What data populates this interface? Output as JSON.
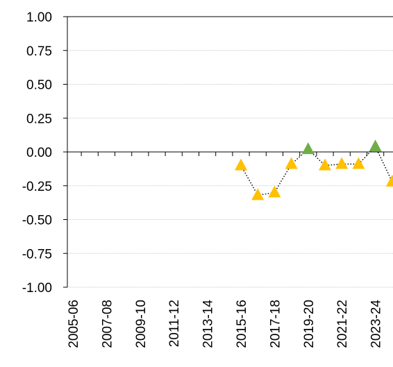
{
  "chart_data": {
    "type": "line",
    "categories": [
      "2005-06",
      null,
      "2007-08",
      null,
      "2009-10",
      null,
      "2011-12",
      null,
      "2013-14",
      null,
      "2015-16",
      null,
      "2017-18",
      null,
      "2019-20",
      null,
      "2021-22",
      null,
      "2023-24",
      null
    ],
    "series": [
      {
        "color": "#000000",
        "values": [
          null,
          null,
          null,
          null,
          null,
          null,
          null,
          null,
          null,
          null,
          -0.1,
          -0.32,
          -0.3,
          -0.09,
          0.02,
          -0.1,
          -0.09,
          -0.09,
          0.04,
          -0.22
        ],
        "point_colors": [
          null,
          null,
          null,
          null,
          null,
          null,
          null,
          null,
          null,
          null,
          "#ffc000",
          "#ffc000",
          "#ffc000",
          "#ffc000",
          "#70ad47",
          "#ffc000",
          "#ffc000",
          "#ffc000",
          "#70ad47",
          "#ffc000"
        ]
      }
    ],
    "ylim": [
      -1,
      1
    ],
    "yticks": [
      {
        "value": -1,
        "label": "-1.00"
      },
      {
        "value": -0.75,
        "label": "-0.75"
      },
      {
        "value": -0.5,
        "label": "-0.50"
      },
      {
        "value": -0.25,
        "label": "-0.25"
      },
      {
        "value": 0,
        "label": "0.00"
      },
      {
        "value": 0.25,
        "label": "0.25"
      },
      {
        "value": 0.5,
        "label": "0.50"
      },
      {
        "value": 0.75,
        "label": "0.75"
      },
      {
        "value": 1,
        "label": "1.00"
      }
    ],
    "grid": true
  }
}
